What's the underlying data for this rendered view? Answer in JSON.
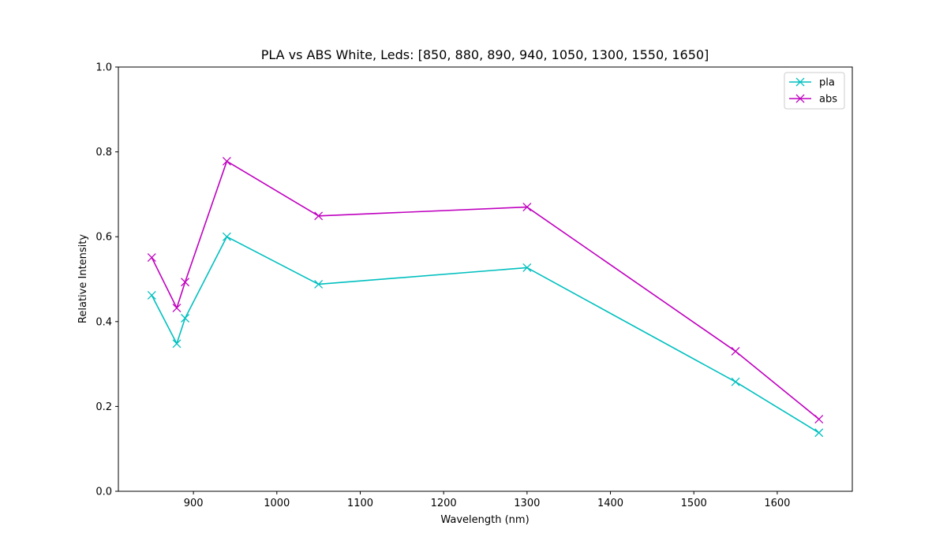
{
  "chart_data": {
    "type": "line",
    "title": "PLA vs ABS White, Leds: [850, 880, 890, 940, 1050, 1300, 1550, 1650]",
    "xlabel": "Wavelength (nm)",
    "ylabel": "Relative Intensity",
    "x": [
      850,
      880,
      890,
      940,
      1050,
      1300,
      1550,
      1650
    ],
    "xlim": [
      810,
      1690
    ],
    "ylim": [
      0.0,
      1.0
    ],
    "xticks": [
      900,
      1000,
      1100,
      1200,
      1300,
      1400,
      1500,
      1600
    ],
    "xtick_labels": [
      "900",
      "1000",
      "1100",
      "1200",
      "1300",
      "1400",
      "1500",
      "1600"
    ],
    "yticks": [
      0.0,
      0.2,
      0.4,
      0.6,
      0.8,
      1.0
    ],
    "ytick_labels": [
      "0.0",
      "0.2",
      "0.4",
      "0.6",
      "0.8",
      "1.0"
    ],
    "grid": false,
    "legend_position": "top-right",
    "marker": "x",
    "series": [
      {
        "name": "pla",
        "color": "#00bfbf",
        "values": [
          0.462,
          0.348,
          0.408,
          0.6,
          0.488,
          0.527,
          0.258,
          0.138
        ]
      },
      {
        "name": "abs",
        "color": "#bf00bf",
        "values": [
          0.551,
          0.432,
          0.493,
          0.778,
          0.649,
          0.67,
          0.33,
          0.17
        ]
      }
    ]
  }
}
